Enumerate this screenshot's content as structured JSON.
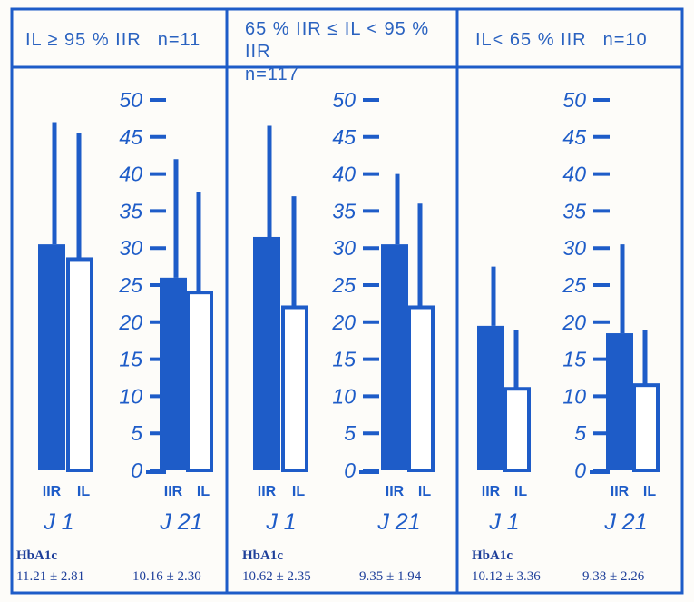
{
  "colors": {
    "accent": "#1e5cc8",
    "border": "#1e5cc8",
    "text": "#1e3f9a"
  },
  "chart_data": [
    {
      "type": "bar",
      "header": {
        "condition": "IL ≥ 95 % IIR",
        "n": "n=11"
      },
      "categories": [
        "J 1",
        "J 21"
      ],
      "series": [
        {
          "name": "IIR",
          "values": [
            30.5,
            26
          ],
          "error_top": [
            47,
            42
          ]
        },
        {
          "name": "IL",
          "values": [
            28.5,
            24
          ],
          "error_top": [
            45.5,
            37.5
          ]
        }
      ],
      "ylim": [
        0,
        50
      ],
      "yticks": [
        "0",
        "5",
        "10",
        "15",
        "20",
        "25",
        "30",
        "35",
        "40",
        "45",
        "50"
      ],
      "hba1c": {
        "label": "HbA1c",
        "values": [
          "11.21 ± 2.81",
          "10.16 ± 2.30"
        ]
      }
    },
    {
      "type": "bar",
      "header": {
        "condition": "65 % IIR ≤ IL < 95 % IIR",
        "n": "n=117"
      },
      "categories": [
        "J 1",
        "J 21"
      ],
      "series": [
        {
          "name": "IIR",
          "values": [
            31.5,
            30.5
          ],
          "error_top": [
            46.5,
            40
          ]
        },
        {
          "name": "IL",
          "values": [
            22,
            22
          ],
          "error_top": [
            37,
            36
          ]
        }
      ],
      "ylim": [
        0,
        50
      ],
      "yticks": [
        "0",
        "5",
        "10",
        "15",
        "20",
        "25",
        "30",
        "35",
        "40",
        "45",
        "50"
      ],
      "hba1c": {
        "label": "HbA1c",
        "values": [
          "10.62 ± 2.35",
          "9.35 ± 1.94"
        ]
      }
    },
    {
      "type": "bar",
      "header": {
        "condition": "IL< 65 % IIR",
        "n": "n=10"
      },
      "categories": [
        "J 1",
        "J 21"
      ],
      "series": [
        {
          "name": "IIR",
          "values": [
            19.5,
            18.5
          ],
          "error_top": [
            27.5,
            30.5
          ]
        },
        {
          "name": "IL",
          "values": [
            11,
            11.5
          ],
          "error_top": [
            19,
            19
          ]
        }
      ],
      "ylim": [
        0,
        50
      ],
      "yticks": [
        "0",
        "5",
        "10",
        "15",
        "20",
        "25",
        "30",
        "35",
        "40",
        "45",
        "50"
      ],
      "hba1c": {
        "label": "HbA1c",
        "values": [
          "10.12 ± 3.36",
          "9.38 ± 2.26"
        ]
      }
    }
  ]
}
